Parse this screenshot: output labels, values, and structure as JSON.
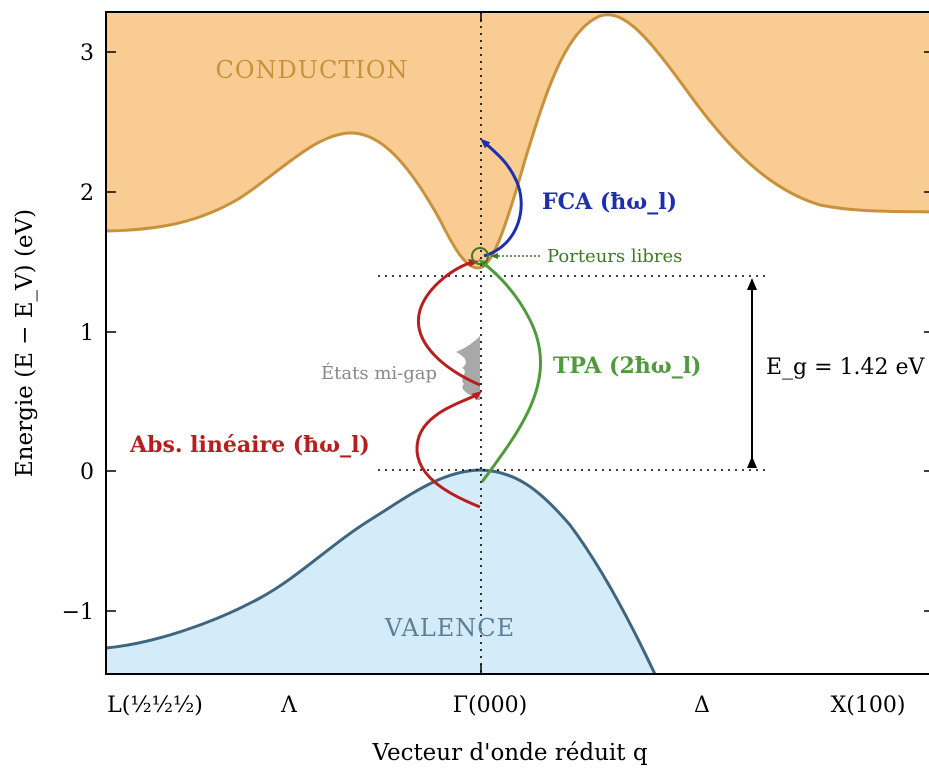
{
  "chart_data": {
    "type": "line",
    "xlabel": "Vecteur d'onde réduit q",
    "ylabel": "Energie (E − E_V) (eV)",
    "ylim": [
      -1.45,
      3.28
    ],
    "y_ticks": [
      "−1",
      "0",
      "1",
      "2",
      "3"
    ],
    "x_ticks": [
      "L(½½½)",
      "Λ",
      "Γ(000)",
      "Δ",
      "X(100)"
    ],
    "bands": {
      "conduction_label": "CONDUCTION",
      "valence_label": "VALENCE",
      "conduction_color": "#f9cc94",
      "conduction_edge": "#c8923c",
      "valence_color": "#d4ecfa",
      "valence_edge": "#3f6680"
    },
    "gap": {
      "label": "E_g = 1.42 eV",
      "value_eV": 1.42
    },
    "levels_eV": [
      0,
      1.42
    ],
    "annotations": {
      "fca": "FCA (ħω_l)",
      "fca_color": "#1c2fb0",
      "tpa": "TPA (2ħω_l)",
      "tpa_color": "#4f9a3c",
      "abs": "Abs. linéaire (ħω_l)",
      "abs_color": "#b81e1e",
      "porteurs": "Porteurs libres",
      "porteurs_color": "#3d7a22",
      "midgap": "États mi-gap",
      "midgap_color": "#888888"
    }
  }
}
